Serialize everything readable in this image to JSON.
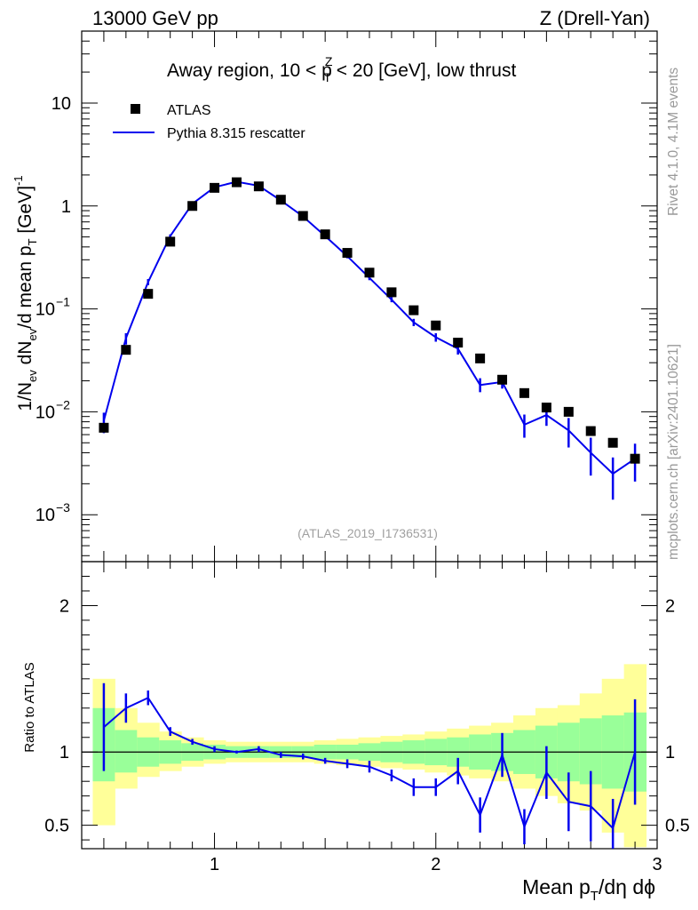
{
  "header": {
    "left": "13000 GeV pp",
    "right": "Z (Drell-Yan)"
  },
  "side_labels": {
    "rivet": "Rivet 4.1.0,  4.1M events",
    "mcplots": "mcplots.cern.ch [arXiv:2401.10621]"
  },
  "chart_data": [
    {
      "type": "scatter",
      "panel": "main",
      "title": "Away region, 10 < p_T^Z < 20 [GeV], low thrust",
      "title_parts": {
        "pre": "Away region, 10 < p",
        "sup": "Z",
        "sub": "T",
        "post": " < 20 [GeV], low thrust"
      },
      "ylabel": "1/N_ev dN_ev/d mean p_T [GeV]^-1",
      "ylabel_parts": {
        "a": "1/N",
        "a_sub": "ev",
        "b": " dN",
        "b_sub": "ev",
        "c": "/d mean p",
        "c_sub": "T",
        "d": " [GeV]",
        "d_sup": "-1"
      },
      "yscale": "log",
      "ylim": [
        0.00035,
        50
      ],
      "xlim": [
        0.4,
        3.0
      ],
      "yticks": [
        {
          "value": 10,
          "label": "10",
          "exp": ""
        },
        {
          "value": 1,
          "label": "1",
          "exp": ""
        },
        {
          "value": 0.1,
          "label": "10",
          "exp": "−1"
        },
        {
          "value": 0.01,
          "label": "10",
          "exp": "−2"
        },
        {
          "value": 0.001,
          "label": "10",
          "exp": "−3"
        }
      ],
      "legend": [
        {
          "name": "ATLAS",
          "marker": "square",
          "color": "#000000"
        },
        {
          "name": "Pythia 8.315 rescatter",
          "marker": "line",
          "color": "#0000ee"
        }
      ],
      "watermark": "(ATLAS_2019_I1736531)",
      "x": [
        0.5,
        0.6,
        0.7,
        0.8,
        0.9,
        1.0,
        1.1,
        1.2,
        1.3,
        1.4,
        1.5,
        1.6,
        1.7,
        1.8,
        1.9,
        2.0,
        2.1,
        2.2,
        2.3,
        2.4,
        2.5,
        2.6,
        2.7,
        2.8,
        2.9
      ],
      "series": [
        {
          "name": "ATLAS",
          "values": [
            0.007,
            0.04,
            0.14,
            0.45,
            1.0,
            1.5,
            1.7,
            1.55,
            1.15,
            0.8,
            0.53,
            0.35,
            0.225,
            0.145,
            0.097,
            0.069,
            0.047,
            0.033,
            0.0205,
            0.0152,
            0.011,
            0.01,
            0.0065,
            0.005,
            0.0035
          ]
        },
        {
          "name": "Pythia 8.315 rescatter",
          "values": [
            0.0082,
            0.052,
            0.182,
            0.51,
            1.05,
            1.52,
            1.72,
            1.57,
            1.13,
            0.79,
            0.51,
            0.325,
            0.2,
            0.123,
            0.074,
            0.053,
            0.041,
            0.0182,
            0.0195,
            0.0075,
            0.0093,
            0.0066,
            0.004,
            0.0025,
            0.0035
          ],
          "err_low": [
            0.0062,
            0.045,
            0.17,
            0.49,
            1.02,
            1.49,
            1.69,
            1.54,
            1.1,
            0.77,
            0.5,
            0.31,
            0.19,
            0.116,
            0.068,
            0.048,
            0.036,
            0.0155,
            0.0168,
            0.0056,
            0.0073,
            0.0045,
            0.0024,
            0.0014,
            0.0021
          ],
          "err_high": [
            0.0098,
            0.058,
            0.195,
            0.53,
            1.08,
            1.55,
            1.75,
            1.6,
            1.16,
            0.81,
            0.52,
            0.34,
            0.21,
            0.13,
            0.08,
            0.058,
            0.046,
            0.0212,
            0.0222,
            0.0094,
            0.0113,
            0.0087,
            0.0056,
            0.0036,
            0.0049
          ]
        }
      ]
    },
    {
      "type": "line",
      "panel": "ratio",
      "ylabel": "Ratio to ATLAS",
      "ylim": [
        0.34,
        2.3
      ],
      "xlim": [
        0.4,
        3.0
      ],
      "yticks": [
        0.5,
        1,
        2
      ],
      "xticks": [
        1,
        2,
        3
      ],
      "xlabel": "Mean p_T/dη dϕ",
      "xlabel_parts": {
        "pre": "Mean p",
        "sub": "T",
        "post": "/dη dϕ"
      },
      "bins": [
        0.45,
        0.55,
        0.65,
        0.75,
        0.85,
        0.95,
        1.05,
        1.15,
        1.25,
        1.35,
        1.45,
        1.55,
        1.65,
        1.75,
        1.85,
        1.95,
        2.05,
        2.15,
        2.25,
        2.35,
        2.45,
        2.55,
        2.65,
        2.75,
        2.85,
        2.95
      ],
      "band_yellow": {
        "low": [
          0.5,
          0.75,
          0.83,
          0.87,
          0.9,
          0.92,
          0.93,
          0.93,
          0.93,
          0.93,
          0.92,
          0.91,
          0.9,
          0.89,
          0.88,
          0.86,
          0.84,
          0.82,
          0.8,
          0.75,
          0.7,
          0.65,
          0.6,
          0.45,
          0.35
        ],
        "high": [
          1.5,
          1.3,
          1.2,
          1.14,
          1.1,
          1.08,
          1.07,
          1.07,
          1.07,
          1.07,
          1.08,
          1.09,
          1.1,
          1.11,
          1.12,
          1.14,
          1.16,
          1.18,
          1.2,
          1.25,
          1.3,
          1.32,
          1.4,
          1.5,
          1.6
        ]
      },
      "band_green": {
        "low": [
          0.8,
          0.86,
          0.9,
          0.92,
          0.94,
          0.95,
          0.96,
          0.96,
          0.96,
          0.96,
          0.95,
          0.95,
          0.94,
          0.93,
          0.92,
          0.91,
          0.9,
          0.88,
          0.87,
          0.85,
          0.82,
          0.8,
          0.78,
          0.75,
          0.73
        ],
        "high": [
          1.3,
          1.15,
          1.1,
          1.08,
          1.06,
          1.05,
          1.04,
          1.04,
          1.04,
          1.04,
          1.05,
          1.05,
          1.06,
          1.07,
          1.08,
          1.09,
          1.1,
          1.12,
          1.13,
          1.15,
          1.18,
          1.2,
          1.23,
          1.25,
          1.27
        ]
      },
      "x": [
        0.5,
        0.6,
        0.7,
        0.8,
        0.9,
        1.0,
        1.1,
        1.2,
        1.3,
        1.4,
        1.5,
        1.6,
        1.7,
        1.8,
        1.9,
        2.0,
        2.1,
        2.2,
        2.3,
        2.4,
        2.5,
        2.6,
        2.7,
        2.8,
        2.9
      ],
      "series": [
        {
          "name": "Pythia 8.315 rescatter",
          "values": [
            1.17,
            1.3,
            1.37,
            1.14,
            1.07,
            1.02,
            1.0,
            1.02,
            0.98,
            0.97,
            0.94,
            0.92,
            0.9,
            0.84,
            0.76,
            0.76,
            0.87,
            0.57,
            0.98,
            0.49,
            0.86,
            0.66,
            0.63,
            0.48,
            1.0
          ],
          "err_low": [
            0.87,
            1.2,
            1.32,
            1.11,
            1.05,
            1.0,
            0.99,
            1.0,
            0.96,
            0.95,
            0.92,
            0.89,
            0.86,
            0.8,
            0.7,
            0.7,
            0.78,
            0.45,
            0.83,
            0.37,
            0.68,
            0.46,
            0.39,
            0.28,
            0.64
          ],
          "err_high": [
            1.47,
            1.4,
            1.42,
            1.17,
            1.09,
            1.04,
            1.01,
            1.04,
            1.0,
            0.99,
            0.96,
            0.95,
            0.94,
            0.88,
            0.82,
            0.82,
            0.96,
            0.69,
            1.13,
            0.61,
            1.04,
            0.86,
            0.87,
            0.68,
            1.36
          ]
        }
      ]
    }
  ]
}
